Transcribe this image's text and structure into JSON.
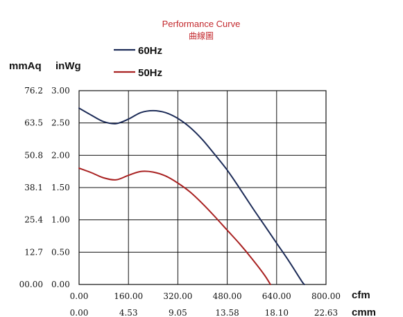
{
  "chart_data": {
    "type": "line",
    "title": "Performance Curve",
    "subtitle": "曲線圖",
    "y_units": [
      "mmAq",
      "inWg"
    ],
    "x_units": [
      "cfm",
      "cmm"
    ],
    "x": [
      0,
      80,
      160,
      240,
      320,
      400,
      480,
      560,
      640,
      720
    ],
    "y_ticks_inwg": [
      "3.00",
      "2.50",
      "2.00",
      "1.50",
      "1.00",
      "0.50",
      "0.00"
    ],
    "y_ticks_mmaq": [
      "76.2",
      "63.5",
      "50.8",
      "38.1",
      "25.4",
      "12.7",
      "00.00"
    ],
    "x_ticks_cfm": [
      "0.00",
      "160.00",
      "320.00",
      "480.00",
      "640.00",
      "800.00"
    ],
    "x_ticks_cmm": [
      "0.00",
      "4.53",
      "9.05",
      "13.58",
      "18.10",
      "22.63"
    ],
    "xlim": [
      0,
      800
    ],
    "ylim": [
      0,
      3
    ],
    "grid": true,
    "legend_position": "top-left",
    "series": [
      {
        "name": "60Hz",
        "color": "#1c2b57",
        "points": [
          [
            0,
            2.73
          ],
          [
            40,
            2.62
          ],
          [
            80,
            2.52
          ],
          [
            120,
            2.49
          ],
          [
            160,
            2.56
          ],
          [
            200,
            2.66
          ],
          [
            240,
            2.69
          ],
          [
            280,
            2.66
          ],
          [
            320,
            2.57
          ],
          [
            360,
            2.43
          ],
          [
            400,
            2.24
          ],
          [
            440,
            2.01
          ],
          [
            480,
            1.77
          ],
          [
            520,
            1.49
          ],
          [
            560,
            1.2
          ],
          [
            600,
            0.92
          ],
          [
            640,
            0.64
          ],
          [
            680,
            0.36
          ],
          [
            720,
            0.06
          ],
          [
            730,
            0.0
          ]
        ]
      },
      {
        "name": "50Hz",
        "color": "#a82020",
        "points": [
          [
            0,
            1.8
          ],
          [
            40,
            1.73
          ],
          [
            80,
            1.65
          ],
          [
            120,
            1.62
          ],
          [
            160,
            1.69
          ],
          [
            200,
            1.75
          ],
          [
            240,
            1.74
          ],
          [
            280,
            1.68
          ],
          [
            320,
            1.57
          ],
          [
            360,
            1.43
          ],
          [
            400,
            1.25
          ],
          [
            440,
            1.05
          ],
          [
            480,
            0.84
          ],
          [
            520,
            0.63
          ],
          [
            560,
            0.4
          ],
          [
            600,
            0.15
          ],
          [
            620,
            0.0
          ]
        ]
      }
    ]
  }
}
